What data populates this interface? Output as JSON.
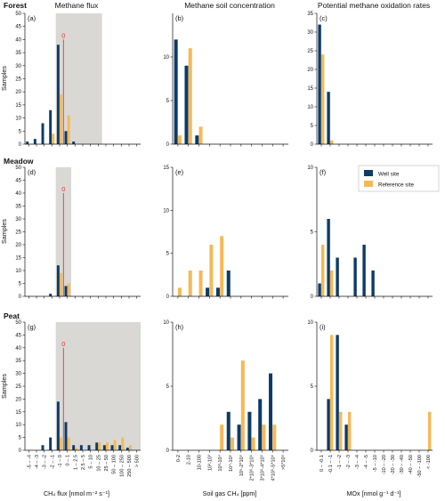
{
  "colors": {
    "well": "#0d3b66",
    "reference": "#f4b957",
    "shade": "#d9d8d4",
    "marker": "#e8383d",
    "axis": "#111111"
  },
  "column_titles": [
    "Methane flux",
    "Methane soil concentration",
    "Potential methane oxidation rates"
  ],
  "row_titles": [
    "Forest",
    "Meadow",
    "Peat"
  ],
  "y_axis_label": "Samples",
  "legend": {
    "well": "Well site",
    "reference": "Reference site",
    "placement": "top-right of panel (f)"
  },
  "x_axis_labels": {
    "flux": "CH₄ flux [nmol m⁻² s⁻¹]",
    "conc": "Soil gas CH₄ [ppm]",
    "mox": "MOx [nmol g⁻¹ d⁻¹]"
  },
  "categories": {
    "flux": [
      "-5 – -4",
      "-4 – -3",
      "-3 – -2",
      "-2 – -1",
      "-1 – 0",
      "0 – 1",
      "1 – 2.5",
      "2.5 – 5",
      "5 – 10",
      "10 – 25",
      "25 – 50",
      "50 – 100",
      "100 – 250",
      "250 – 500",
      "> 500"
    ],
    "conc": [
      "0-2",
      "2-10",
      "10-100",
      "10²-10³",
      "10³-10⁴",
      "10⁴-10⁵",
      "10⁵-2*10⁵",
      "2*10⁵-3*10⁵",
      "3*10⁵-4*10⁵",
      "4*10⁵-5*10⁵",
      ">5*10⁵"
    ],
    "mox": [
      "0 – -0.1",
      "-0.1 – -1",
      "-1 – -2",
      "-2 – -3",
      "-3 – -4",
      "-4 – -5",
      "-5 – -10",
      "-10 – -20",
      "-20 – -30",
      "-30 – -40",
      "-40 – -50",
      "-50 – -100",
      "< -100"
    ]
  },
  "chart_data": [
    {
      "panel": "(a)",
      "type": "bar",
      "x_axis": "flux",
      "ylim": [
        0,
        50
      ],
      "yticks": [
        0,
        5,
        10,
        15,
        20,
        25,
        30,
        35,
        40,
        45,
        50
      ],
      "shade_categories": [
        4,
        9
      ],
      "zero_marker": {
        "label": "0",
        "boundary": 5,
        "value": 40
      },
      "series": [
        {
          "name": "Well site",
          "values": [
            1,
            2,
            8,
            13,
            38,
            5,
            1,
            0,
            0,
            0,
            0,
            0,
            0,
            0,
            0
          ]
        },
        {
          "name": "Reference site",
          "values": [
            0,
            0,
            0,
            4,
            19,
            11,
            0,
            0,
            0,
            0,
            0,
            0,
            0,
            0,
            0
          ]
        }
      ]
    },
    {
      "panel": "(b)",
      "type": "bar",
      "x_axis": "conc",
      "ylim": [
        0,
        15
      ],
      "yticks": [
        0,
        5,
        10
      ],
      "series": [
        {
          "name": "Well site",
          "values": [
            12,
            9,
            1,
            0,
            0,
            0,
            0,
            0,
            0,
            0,
            0
          ]
        },
        {
          "name": "Reference site",
          "values": [
            1,
            11,
            2,
            0,
            0,
            0,
            0,
            0,
            0,
            0,
            0
          ]
        }
      ]
    },
    {
      "panel": "(c)",
      "type": "bar",
      "x_axis": "mox",
      "ylim": [
        0,
        35
      ],
      "yticks": [
        0,
        5,
        10,
        15,
        20,
        25,
        30,
        35
      ],
      "series": [
        {
          "name": "Well site",
          "values": [
            32,
            14,
            0,
            0,
            0,
            0,
            0,
            0,
            0,
            0,
            0,
            0,
            0
          ]
        },
        {
          "name": "Reference site",
          "values": [
            24,
            1,
            0,
            0,
            0,
            0,
            0,
            0,
            0,
            0,
            0,
            0,
            0
          ]
        }
      ]
    },
    {
      "panel": "(d)",
      "type": "bar",
      "x_axis": "flux",
      "ylim": [
        0,
        50
      ],
      "yticks": [
        0,
        5,
        10,
        15,
        20,
        25,
        30,
        35,
        40,
        45,
        50
      ],
      "shade_categories": [
        4,
        5
      ],
      "zero_marker": {
        "label": "0",
        "boundary": 5,
        "value": 40
      },
      "series": [
        {
          "name": "Well site",
          "values": [
            0,
            0,
            0,
            1,
            12,
            4,
            0,
            0,
            0,
            0,
            0,
            0,
            0,
            0,
            0
          ]
        },
        {
          "name": "Reference site",
          "values": [
            0,
            0,
            0,
            0,
            9,
            5,
            0,
            0,
            0,
            0,
            0,
            0,
            0,
            0,
            0
          ]
        }
      ]
    },
    {
      "panel": "(e)",
      "type": "bar",
      "x_axis": "conc",
      "ylim": [
        0,
        15
      ],
      "yticks": [
        0,
        5,
        10,
        15
      ],
      "series": [
        {
          "name": "Well site",
          "values": [
            0,
            0,
            0,
            1,
            1,
            3,
            0,
            0,
            0,
            0,
            0
          ]
        },
        {
          "name": "Reference site",
          "values": [
            1,
            3,
            3,
            6,
            7,
            0,
            0,
            0,
            0,
            0,
            0
          ]
        }
      ]
    },
    {
      "panel": "(f)",
      "type": "bar",
      "x_axis": "mox",
      "ylim": [
        0,
        10
      ],
      "yticks": [
        0,
        5,
        10
      ],
      "series": [
        {
          "name": "Well site",
          "values": [
            1,
            6,
            3,
            0,
            3,
            4,
            2,
            0,
            0,
            0,
            0,
            0,
            0
          ]
        },
        {
          "name": "Reference site",
          "values": [
            4,
            2,
            0,
            0,
            0,
            0,
            0,
            0,
            0,
            0,
            0,
            0,
            0
          ]
        }
      ]
    },
    {
      "panel": "(g)",
      "type": "bar",
      "x_axis": "flux",
      "ylim": [
        0,
        50
      ],
      "yticks": [
        0,
        5,
        10,
        15,
        20,
        25,
        30,
        35,
        40,
        45,
        50
      ],
      "shade_categories": [
        4,
        14
      ],
      "zero_marker": {
        "label": "0",
        "boundary": 5,
        "value": 40
      },
      "series": [
        {
          "name": "Well site",
          "values": [
            0,
            0,
            2,
            5,
            19,
            11,
            2,
            2,
            2,
            3,
            2,
            2,
            2,
            1,
            0
          ]
        },
        {
          "name": "Reference site",
          "values": [
            0,
            0,
            0,
            0,
            5,
            5,
            1,
            0,
            0,
            3,
            3,
            4,
            5,
            2,
            0
          ]
        }
      ]
    },
    {
      "panel": "(h)",
      "type": "bar",
      "x_axis": "conc",
      "ylim": [
        0,
        10
      ],
      "yticks": [
        0,
        5,
        10
      ],
      "series": [
        {
          "name": "Well site",
          "values": [
            0,
            0,
            0,
            0,
            0,
            3,
            2,
            3,
            4,
            6,
            0
          ]
        },
        {
          "name": "Reference site",
          "values": [
            0,
            0,
            0,
            0,
            2,
            1,
            7,
            1,
            2,
            2,
            0
          ]
        }
      ]
    },
    {
      "panel": "(i)",
      "type": "bar",
      "x_axis": "mox",
      "ylim": [
        0,
        10
      ],
      "yticks": [
        0,
        5,
        10
      ],
      "series": [
        {
          "name": "Well site",
          "values": [
            0,
            4,
            9,
            2,
            0,
            0,
            0,
            0,
            0,
            0,
            0,
            0,
            0
          ]
        },
        {
          "name": "Reference site",
          "values": [
            0,
            9,
            3,
            3,
            0,
            0,
            0,
            0,
            0,
            0,
            0,
            0,
            3
          ]
        }
      ]
    }
  ]
}
